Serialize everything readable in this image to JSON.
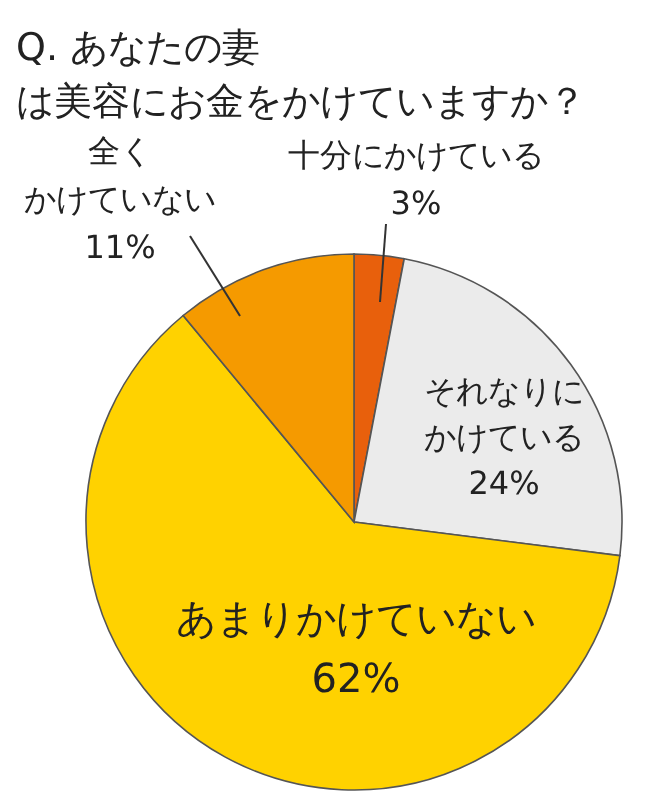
{
  "chart_data": {
    "type": "pie",
    "title": "Q. あなたの妻は美容にお金をかけていますか？",
    "categories": [
      "十分にかけている",
      "それなりにかけている",
      "あまりかけていない",
      "全くかけていない"
    ],
    "values": [
      3,
      24,
      62,
      11
    ],
    "value_labels": [
      "3%",
      "24%",
      "62%",
      "11%"
    ],
    "colors": [
      "#e8600c",
      "#ebebeb",
      "#ffd200",
      "#f59a00"
    ]
  }
}
